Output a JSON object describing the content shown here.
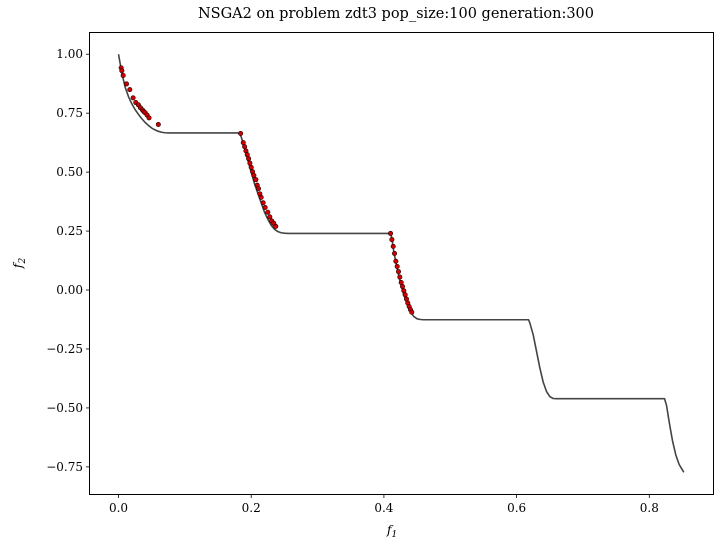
{
  "chart_data": {
    "type": "scatter",
    "title": "NSGA2 on problem zdt3 pop_size:100 generation:300",
    "xlabel": "f",
    "xlabel_sub": "1",
    "ylabel": "f",
    "ylabel_sub": "2",
    "xlim": [
      -0.043,
      0.896
    ],
    "ylim": [
      -0.865,
      1.09
    ],
    "grid": false,
    "xticks": [
      0.0,
      0.2,
      0.4,
      0.6,
      0.8
    ],
    "xtick_labels": [
      "0.0",
      "0.2",
      "0.4",
      "0.6",
      "0.8"
    ],
    "yticks": [
      -0.75,
      -0.5,
      -0.25,
      0.0,
      0.25,
      0.5,
      0.75,
      1.0
    ],
    "ytick_labels": [
      "−0.75",
      "−0.50",
      "−0.25",
      "0.00",
      "0.25",
      "0.50",
      "0.75",
      "1.00"
    ],
    "colors": {
      "front_line": "#444444",
      "points_fill": "#cc0000",
      "points_edge": "#220000"
    },
    "series": [
      {
        "type": "line",
        "x": [
          0.0,
          0.005,
          0.01,
          0.015,
          0.02,
          0.025,
          0.03,
          0.035,
          0.04,
          0.045,
          0.05,
          0.055,
          0.06,
          0.065,
          0.07,
          0.075,
          0.08,
          0.085,
          0.09,
          0.1,
          0.12,
          0.14,
          0.16,
          0.18,
          0.183,
          0.186,
          0.19,
          0.195,
          0.2,
          0.205,
          0.21,
          0.215,
          0.22,
          0.225,
          0.23,
          0.235,
          0.24,
          0.245,
          0.25,
          0.255,
          0.26,
          0.28,
          0.3,
          0.33,
          0.36,
          0.39,
          0.41,
          0.412,
          0.415,
          0.42,
          0.425,
          0.43,
          0.435,
          0.44,
          0.445,
          0.45,
          0.455,
          0.46,
          0.5,
          0.55,
          0.6,
          0.618,
          0.62,
          0.625,
          0.63,
          0.635,
          0.64,
          0.645,
          0.65,
          0.655,
          0.66,
          0.7,
          0.75,
          0.8,
          0.823,
          0.826,
          0.83,
          0.835,
          0.84,
          0.845,
          0.852
        ],
        "y": [
          1.0,
          0.92,
          0.86,
          0.82,
          0.79,
          0.765,
          0.745,
          0.727,
          0.711,
          0.698,
          0.687,
          0.679,
          0.673,
          0.669,
          0.667,
          0.666,
          0.666,
          0.666,
          0.666,
          0.666,
          0.666,
          0.666,
          0.666,
          0.666,
          0.664,
          0.64,
          0.6,
          0.55,
          0.5,
          0.45,
          0.41,
          0.37,
          0.33,
          0.3,
          0.275,
          0.258,
          0.248,
          0.243,
          0.241,
          0.24,
          0.24,
          0.24,
          0.24,
          0.24,
          0.24,
          0.24,
          0.24,
          0.22,
          0.16,
          0.09,
          0.03,
          -0.02,
          -0.06,
          -0.092,
          -0.112,
          -0.122,
          -0.125,
          -0.126,
          -0.126,
          -0.126,
          -0.126,
          -0.126,
          -0.14,
          -0.19,
          -0.26,
          -0.33,
          -0.39,
          -0.43,
          -0.452,
          -0.46,
          -0.461,
          -0.461,
          -0.461,
          -0.461,
          -0.461,
          -0.49,
          -0.56,
          -0.64,
          -0.7,
          -0.74,
          -0.773
        ]
      },
      {
        "type": "scatter",
        "x": [
          0.004,
          0.005,
          0.007,
          0.012,
          0.017,
          0.022,
          0.026,
          0.03,
          0.033,
          0.036,
          0.038,
          0.04,
          0.043,
          0.046,
          0.06,
          0.184,
          0.188,
          0.19,
          0.192,
          0.194,
          0.196,
          0.198,
          0.2,
          0.202,
          0.204,
          0.207,
          0.209,
          0.211,
          0.213,
          0.215,
          0.218,
          0.221,
          0.225,
          0.228,
          0.231,
          0.234,
          0.237,
          0.41,
          0.412,
          0.414,
          0.416,
          0.418,
          0.42,
          0.422,
          0.424,
          0.426,
          0.428,
          0.43,
          0.432,
          0.434,
          0.436,
          0.438,
          0.44,
          0.442
        ],
        "y": [
          0.942,
          0.93,
          0.91,
          0.874,
          0.85,
          0.815,
          0.795,
          0.785,
          0.773,
          0.764,
          0.757,
          0.752,
          0.742,
          0.73,
          0.702,
          0.664,
          0.625,
          0.608,
          0.59,
          0.574,
          0.557,
          0.538,
          0.52,
          0.502,
          0.486,
          0.468,
          0.445,
          0.43,
          0.408,
          0.393,
          0.37,
          0.35,
          0.33,
          0.31,
          0.293,
          0.283,
          0.27,
          0.24,
          0.214,
          0.185,
          0.155,
          0.122,
          0.1,
          0.078,
          0.055,
          0.032,
          0.015,
          -0.003,
          -0.02,
          -0.038,
          -0.055,
          -0.07,
          -0.083,
          -0.094
        ]
      }
    ]
  }
}
